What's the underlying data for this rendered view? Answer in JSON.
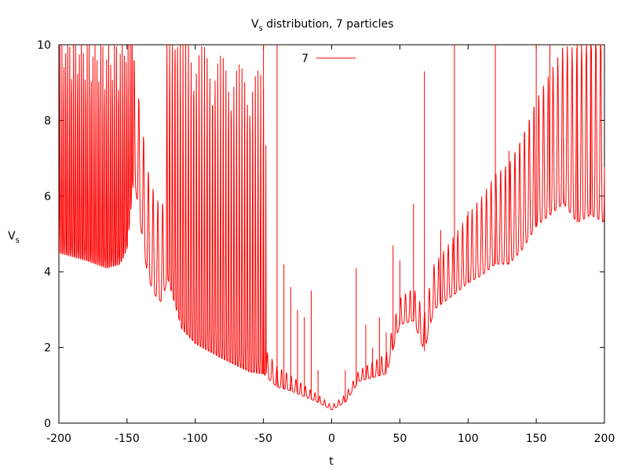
{
  "chart_data": {
    "type": "line",
    "title_main": "V",
    "title_sub": "s",
    "title_rest": " distribution, 7 particles",
    "xlabel": "t",
    "ylabel_main": "V",
    "ylabel_sub": "s",
    "xlim": [
      -200,
      200
    ],
    "ylim": [
      0,
      10
    ],
    "xticks": [
      -200,
      -150,
      -100,
      -50,
      0,
      50,
      100,
      150,
      200
    ],
    "yticks": [
      0,
      2,
      4,
      6,
      8,
      10
    ],
    "xtick_labels": [
      "-200",
      "-150",
      "-100",
      "-50",
      "0",
      "50",
      "100",
      "150",
      "200"
    ],
    "ytick_labels": [
      "0",
      "2",
      "4",
      "6",
      "8",
      "10"
    ],
    "grid": false,
    "legend_position": "top-center",
    "series": [
      {
        "name": "7",
        "color": "#ff0000",
        "description_envelope": [
          {
            "x": -200,
            "y": 4.5
          },
          {
            "x": -180,
            "y": 4.3
          },
          {
            "x": -165,
            "y": 4.1
          },
          {
            "x": -155,
            "y": 4.2
          },
          {
            "x": -150,
            "y": 4.6
          },
          {
            "x": -145,
            "y": 6.5
          },
          {
            "x": -140,
            "y": 5.2
          },
          {
            "x": -135,
            "y": 3.9
          },
          {
            "x": -130,
            "y": 3.4
          },
          {
            "x": -125,
            "y": 3.2
          },
          {
            "x": -120,
            "y": 3.8
          },
          {
            "x": -110,
            "y": 2.5
          },
          {
            "x": -100,
            "y": 2.1
          },
          {
            "x": -80,
            "y": 1.7
          },
          {
            "x": -60,
            "y": 1.35
          },
          {
            "x": -50,
            "y": 1.3
          },
          {
            "x": -40,
            "y": 0.95
          },
          {
            "x": -30,
            "y": 0.85
          },
          {
            "x": -20,
            "y": 0.7
          },
          {
            "x": -10,
            "y": 0.55
          },
          {
            "x": 0,
            "y": 0.35
          },
          {
            "x": 10,
            "y": 0.55
          },
          {
            "x": 20,
            "y": 1.1
          },
          {
            "x": 40,
            "y": 1.3
          },
          {
            "x": 50,
            "y": 2.6
          },
          {
            "x": 60,
            "y": 2.7
          },
          {
            "x": 68,
            "y": 1.9
          },
          {
            "x": 75,
            "y": 3.0
          },
          {
            "x": 90,
            "y": 3.4
          },
          {
            "x": 100,
            "y": 3.7
          },
          {
            "x": 110,
            "y": 3.9
          },
          {
            "x": 120,
            "y": 4.2
          },
          {
            "x": 130,
            "y": 4.2
          },
          {
            "x": 140,
            "y": 4.6
          },
          {
            "x": 150,
            "y": 5.2
          },
          {
            "x": 160,
            "y": 5.5
          },
          {
            "x": 170,
            "y": 5.8
          },
          {
            "x": 180,
            "y": 5.3
          },
          {
            "x": 190,
            "y": 5.5
          },
          {
            "x": 200,
            "y": 5.3
          }
        ],
        "spikes": [
          {
            "x": -50,
            "y": 10
          },
          {
            "x": -40,
            "y": 10
          },
          {
            "x": -35,
            "y": 4.2
          },
          {
            "x": -30,
            "y": 3.6
          },
          {
            "x": -25,
            "y": 3.0
          },
          {
            "x": -20,
            "y": 2.8
          },
          {
            "x": -15,
            "y": 3.5
          },
          {
            "x": -10,
            "y": 1.4
          },
          {
            "x": 10,
            "y": 1.4
          },
          {
            "x": 18,
            "y": 4.1
          },
          {
            "x": 25,
            "y": 2.6
          },
          {
            "x": 30,
            "y": 2.0
          },
          {
            "x": 35,
            "y": 2.8
          },
          {
            "x": 40,
            "y": 2.4
          },
          {
            "x": 45,
            "y": 4.7
          },
          {
            "x": 50,
            "y": 4.3
          },
          {
            "x": 60,
            "y": 5.8
          },
          {
            "x": 68,
            "y": 9.3
          },
          {
            "x": 80,
            "y": 5.1
          },
          {
            "x": 90,
            "y": 10
          },
          {
            "x": 100,
            "y": 5.6
          },
          {
            "x": 120,
            "y": 10
          },
          {
            "x": 130,
            "y": 7.2
          },
          {
            "x": 150,
            "y": 10
          },
          {
            "x": 160,
            "y": 10
          },
          {
            "x": 170,
            "y": 7.5
          },
          {
            "x": 180,
            "y": 10
          },
          {
            "x": 190,
            "y": 10
          }
        ]
      }
    ]
  }
}
